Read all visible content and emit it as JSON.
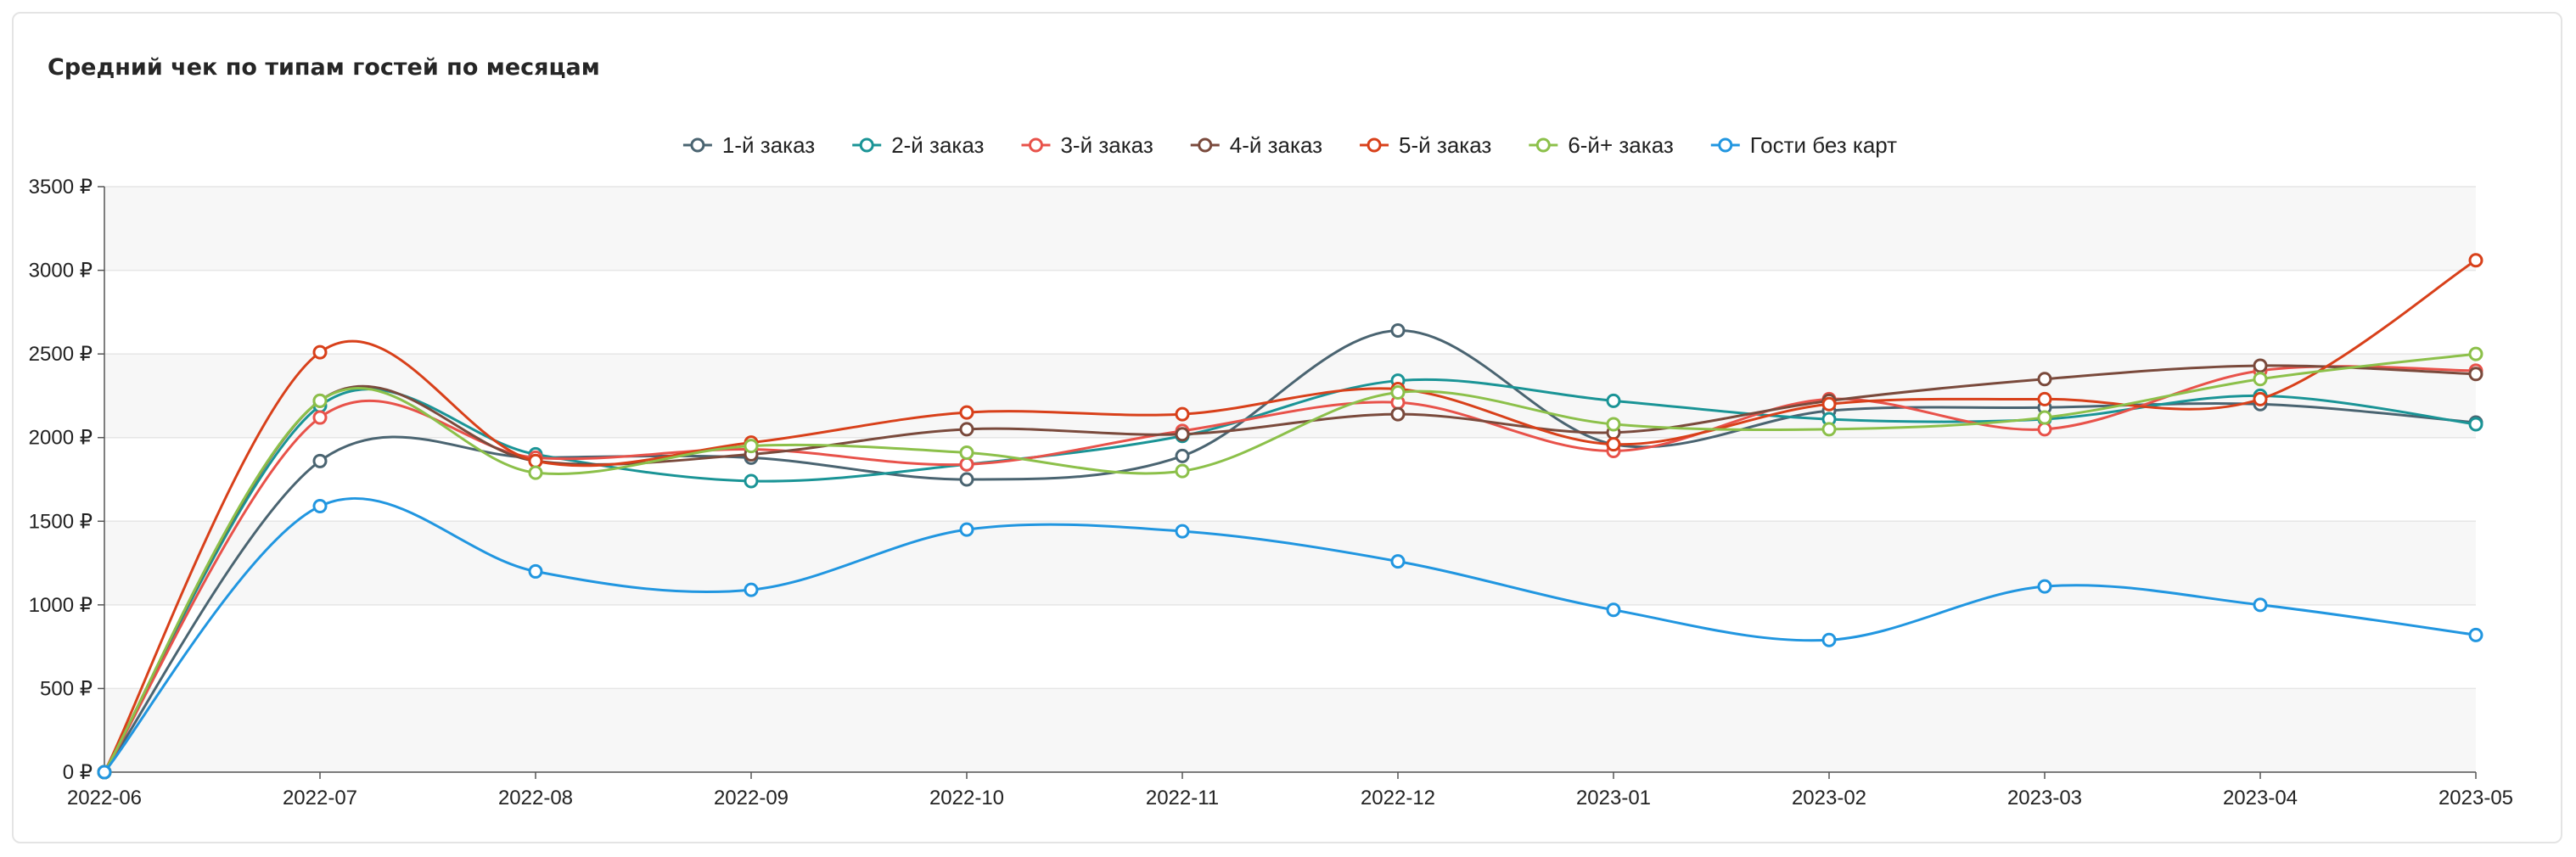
{
  "chart_data": {
    "type": "line",
    "title": "Средний чек по типам гостей по месяцам",
    "x": [
      "2022-06",
      "2022-07",
      "2022-08",
      "2022-09",
      "2022-10",
      "2022-11",
      "2022-12",
      "2023-01",
      "2023-02",
      "2023-03",
      "2023-04",
      "2023-05"
    ],
    "y_ticks": [
      "0 ₽",
      "500 ₽",
      "1000 ₽",
      "1500 ₽",
      "2000 ₽",
      "2500 ₽",
      "3000 ₽",
      "3500 ₽"
    ],
    "ylim": [
      0,
      3500
    ],
    "legend_position": "top-center",
    "grid": true,
    "series": [
      {
        "name": "1-й заказ",
        "color": "#4a6471",
        "values": [
          0,
          1860,
          1880,
          1880,
          1750,
          1890,
          2640,
          1960,
          2160,
          2180,
          2200,
          2090
        ]
      },
      {
        "name": "2-й заказ",
        "color": "#1a9496",
        "values": [
          0,
          2190,
          1900,
          1740,
          1840,
          2010,
          2340,
          2220,
          2110,
          2110,
          2250,
          2080
        ]
      },
      {
        "name": "3-й заказ",
        "color": "#e8524a",
        "values": [
          0,
          2120,
          1880,
          1930,
          1840,
          2040,
          2210,
          1920,
          2230,
          2050,
          2400,
          2400
        ]
      },
      {
        "name": "4-й заказ",
        "color": "#7a4a3c",
        "values": [
          0,
          2220,
          1860,
          1900,
          2050,
          2020,
          2140,
          2030,
          2220,
          2350,
          2430,
          2380
        ]
      },
      {
        "name": "5-й заказ",
        "color": "#d8401a",
        "values": [
          0,
          2510,
          1860,
          1970,
          2150,
          2140,
          2290,
          1960,
          2200,
          2230,
          2230,
          3060
        ]
      },
      {
        "name": "6-й+ заказ",
        "color": "#8cc04a",
        "values": [
          0,
          2220,
          1790,
          1950,
          1910,
          1800,
          2270,
          2080,
          2050,
          2120,
          2350,
          2500
        ]
      },
      {
        "name": "Гости без карт",
        "color": "#2196e0",
        "values": [
          0,
          1590,
          1200,
          1090,
          1450,
          1440,
          1260,
          970,
          790,
          1110,
          1000,
          820
        ]
      }
    ]
  }
}
